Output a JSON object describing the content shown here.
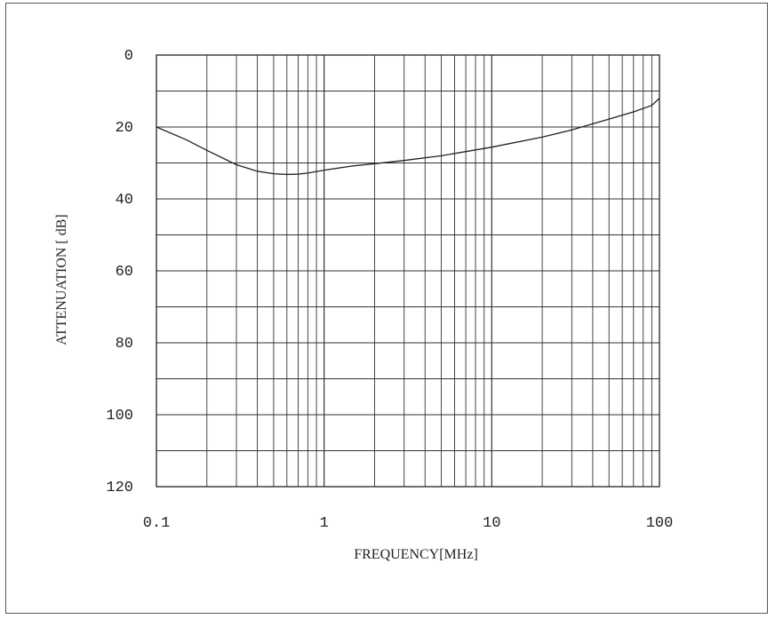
{
  "chart_data": {
    "type": "line",
    "title": "",
    "xlabel": "FREQUENCY[MHz]",
    "ylabel": "ATTENUATION [ dB]",
    "x_scale": "log",
    "xlim": [
      0.1,
      100
    ],
    "ylim": [
      0,
      120
    ],
    "y_inverted": true,
    "grid": true,
    "x_ticks": [
      "0.1",
      "1",
      "10",
      "100"
    ],
    "y_ticks": [
      "0",
      "20",
      "40",
      "60",
      "80",
      "100",
      "120"
    ],
    "series": [
      {
        "x": [
          0.1,
          0.15,
          0.2,
          0.3,
          0.4,
          0.5,
          0.6,
          0.7,
          0.8,
          1,
          1.5,
          2,
          3,
          5,
          10,
          20,
          30,
          50,
          70,
          90,
          100
        ],
        "y": [
          20,
          23.5,
          26.5,
          30.5,
          32.3,
          33.0,
          33.2,
          33.1,
          32.8,
          32.0,
          30.8,
          30.2,
          29.3,
          28.0,
          25.6,
          22.8,
          20.8,
          17.8,
          15.8,
          14.0,
          12.0
        ]
      }
    ]
  },
  "colors": {
    "line": "#222222",
    "grid": "#333333",
    "background": "#ffffff"
  }
}
